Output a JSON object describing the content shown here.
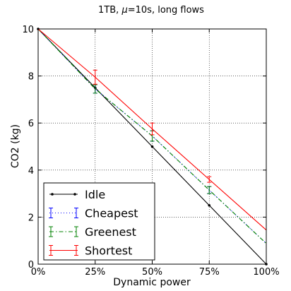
{
  "chart_data": {
    "type": "line",
    "title_prefix": "1TB, ",
    "title_mu": "μ",
    "title_suffix": "=10s, long flows",
    "xlabel": "Dynamic power",
    "ylabel": "CO2 (kg)",
    "x": [
      0,
      25,
      50,
      75,
      100
    ],
    "x_tick_labels": [
      "0%",
      "25%",
      "50%",
      "75%",
      "100%"
    ],
    "xlim": [
      0,
      100
    ],
    "ylim": [
      0,
      10
    ],
    "y_ticks": [
      0,
      2,
      4,
      6,
      8,
      10
    ],
    "y_tick_labels": [
      "0",
      "2",
      "4",
      "6",
      "8",
      "10"
    ],
    "grid": true,
    "legend_position": "bottom-left",
    "series": [
      {
        "name": "Idle",
        "color": "#000000",
        "style": "solid-dot-markers",
        "values": [
          10.0,
          7.5,
          5.0,
          2.5,
          0.0
        ],
        "errors": null
      },
      {
        "name": "Cheapest",
        "color": "#0000ff",
        "style": "dotted-errorbars",
        "values": [
          10.0,
          7.45,
          5.45,
          3.15,
          0.88
        ],
        "errors": [
          0.0,
          0.18,
          0.22,
          0.15,
          0.0
        ]
      },
      {
        "name": "Greenest",
        "color": "#008000",
        "style": "dashdot-errorbars",
        "values": [
          10.0,
          7.45,
          5.45,
          3.15,
          0.88
        ],
        "errors": [
          0.0,
          0.18,
          0.22,
          0.15,
          0.0
        ]
      },
      {
        "name": "Shortest",
        "color": "#ff0000",
        "style": "solid-errorbars",
        "values": [
          10.0,
          7.95,
          5.75,
          3.6,
          1.45
        ],
        "errors": [
          0.0,
          0.3,
          0.25,
          0.12,
          0.0
        ]
      }
    ]
  }
}
